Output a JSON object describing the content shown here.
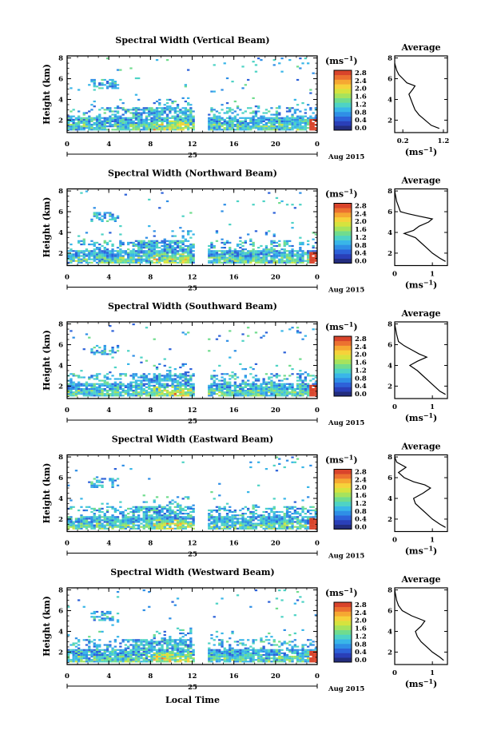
{
  "figure": {
    "height_label": "Height (km)",
    "units_label": "(ms",
    "units_exp": "−1",
    "units_close": ")",
    "day_label": "25",
    "month_label": "Aug 2015",
    "time_label": "Local Time",
    "avg_title": "Average"
  },
  "chart_data": [
    {
      "type": "heatmap",
      "title": "Spectral Width (Vertical Beam)",
      "ylabel": "Height (km)",
      "ylim": [
        0.8,
        8.2
      ],
      "x_ticks": [
        "0",
        "4",
        "8",
        "12",
        "16",
        "20",
        "0"
      ],
      "y_ticks": [
        "2",
        "4",
        "6",
        "8"
      ],
      "colorbar_ticks": [
        "0.0",
        "0.4",
        "0.8",
        "1.2",
        "1.6",
        "2.0",
        "2.4",
        "2.8"
      ],
      "avg_xticks": [
        "0.2",
        "1.2"
      ],
      "avg_xlim": [
        0,
        1.3
      ],
      "average_profile": [
        [
          1.2,
          1.1
        ],
        [
          1.5,
          0.9
        ],
        [
          2.0,
          0.75
        ],
        [
          2.5,
          0.6
        ],
        [
          3.0,
          0.5
        ],
        [
          3.5,
          0.45
        ],
        [
          4.0,
          0.4
        ],
        [
          4.5,
          0.35
        ],
        [
          5.0,
          0.45
        ],
        [
          5.3,
          0.5
        ],
        [
          5.6,
          0.3
        ],
        [
          6.0,
          0.2
        ],
        [
          6.4,
          0.1
        ],
        [
          6.8,
          0.05
        ],
        [
          7.5,
          0.0
        ]
      ]
    },
    {
      "type": "heatmap",
      "title": "Spectral Width (Northward Beam)",
      "ylabel": "Height (km)",
      "ylim": [
        0.8,
        8.2
      ],
      "x_ticks": [
        "0",
        "4",
        "8",
        "12",
        "16",
        "20",
        "0"
      ],
      "y_ticks": [
        "2",
        "4",
        "6",
        "8"
      ],
      "colorbar_ticks": [
        "0.0",
        "0.4",
        "0.8",
        "1.2",
        "1.6",
        "2.0",
        "2.4",
        "2.8"
      ],
      "avg_xticks": [
        "0",
        "1"
      ],
      "avg_xlim": [
        0,
        1.4
      ],
      "average_profile": [
        [
          1.2,
          1.35
        ],
        [
          1.5,
          1.2
        ],
        [
          2.0,
          1.0
        ],
        [
          2.5,
          0.85
        ],
        [
          3.0,
          0.7
        ],
        [
          3.5,
          0.55
        ],
        [
          3.9,
          0.25
        ],
        [
          4.2,
          0.5
        ],
        [
          4.6,
          0.65
        ],
        [
          5.0,
          0.9
        ],
        [
          5.3,
          1.0
        ],
        [
          5.6,
          0.6
        ],
        [
          5.8,
          0.35
        ],
        [
          6.0,
          0.15
        ],
        [
          7.0,
          0.05
        ],
        [
          8.0,
          0.0
        ]
      ]
    },
    {
      "type": "heatmap",
      "title": "Spectral Width (Southward Beam)",
      "ylabel": "Height (km)",
      "ylim": [
        0.8,
        8.2
      ],
      "x_ticks": [
        "0",
        "4",
        "8",
        "12",
        "16",
        "20",
        "0"
      ],
      "y_ticks": [
        "2",
        "4",
        "6",
        "8"
      ],
      "colorbar_ticks": [
        "0.0",
        "0.4",
        "0.8",
        "1.2",
        "1.6",
        "2.0",
        "2.4",
        "2.8"
      ],
      "avg_xticks": [
        "0",
        "1"
      ],
      "avg_xlim": [
        0,
        1.4
      ],
      "average_profile": [
        [
          1.2,
          1.35
        ],
        [
          1.5,
          1.2
        ],
        [
          2.0,
          1.05
        ],
        [
          2.5,
          0.9
        ],
        [
          3.0,
          0.75
        ],
        [
          3.5,
          0.6
        ],
        [
          4.0,
          0.4
        ],
        [
          4.4,
          0.6
        ],
        [
          4.8,
          0.85
        ],
        [
          5.1,
          0.65
        ],
        [
          5.5,
          0.45
        ],
        [
          5.9,
          0.25
        ],
        [
          6.3,
          0.1
        ],
        [
          7.0,
          0.05
        ],
        [
          8.0,
          0.0
        ]
      ]
    },
    {
      "type": "heatmap",
      "title": "Spectral Width (Eastward Beam)",
      "ylabel": "Height (km)",
      "ylim": [
        0.8,
        8.2
      ],
      "x_ticks": [
        "0",
        "4",
        "8",
        "12",
        "16",
        "20",
        "0"
      ],
      "y_ticks": [
        "2",
        "4",
        "6",
        "8"
      ],
      "colorbar_ticks": [
        "0.0",
        "0.4",
        "0.8",
        "1.2",
        "1.6",
        "2.0",
        "2.4",
        "2.8"
      ],
      "avg_xticks": [
        "0",
        "1"
      ],
      "avg_xlim": [
        0,
        1.4
      ],
      "average_profile": [
        [
          1.2,
          1.35
        ],
        [
          1.5,
          1.2
        ],
        [
          2.0,
          1.0
        ],
        [
          2.5,
          0.85
        ],
        [
          3.0,
          0.7
        ],
        [
          3.5,
          0.55
        ],
        [
          4.0,
          0.5
        ],
        [
          4.5,
          0.75
        ],
        [
          5.0,
          0.95
        ],
        [
          5.3,
          0.8
        ],
        [
          5.6,
          0.5
        ],
        [
          6.0,
          0.25
        ],
        [
          6.5,
          0.1
        ],
        [
          7.0,
          0.3
        ],
        [
          7.5,
          0.05
        ],
        [
          8.0,
          0.0
        ]
      ]
    },
    {
      "type": "heatmap",
      "title": "Spectral Width (Westward Beam)",
      "ylabel": "Height (km)",
      "ylim": [
        0.8,
        8.2
      ],
      "x_ticks": [
        "0",
        "4",
        "8",
        "12",
        "16",
        "20",
        "0"
      ],
      "y_ticks": [
        "2",
        "4",
        "6",
        "8"
      ],
      "colorbar_ticks": [
        "0.0",
        "0.4",
        "0.8",
        "1.2",
        "1.6",
        "2.0",
        "2.4",
        "2.8"
      ],
      "avg_xticks": [
        "0",
        "1"
      ],
      "avg_xlim": [
        0,
        1.4
      ],
      "average_profile": [
        [
          1.2,
          1.3
        ],
        [
          1.5,
          1.2
        ],
        [
          2.0,
          1.0
        ],
        [
          2.5,
          0.85
        ],
        [
          3.0,
          0.7
        ],
        [
          3.5,
          0.6
        ],
        [
          4.0,
          0.55
        ],
        [
          4.5,
          0.7
        ],
        [
          5.0,
          0.8
        ],
        [
          5.5,
          0.45
        ],
        [
          6.0,
          0.2
        ],
        [
          6.5,
          0.1
        ],
        [
          7.0,
          0.05
        ],
        [
          8.0,
          0.0
        ]
      ]
    }
  ]
}
